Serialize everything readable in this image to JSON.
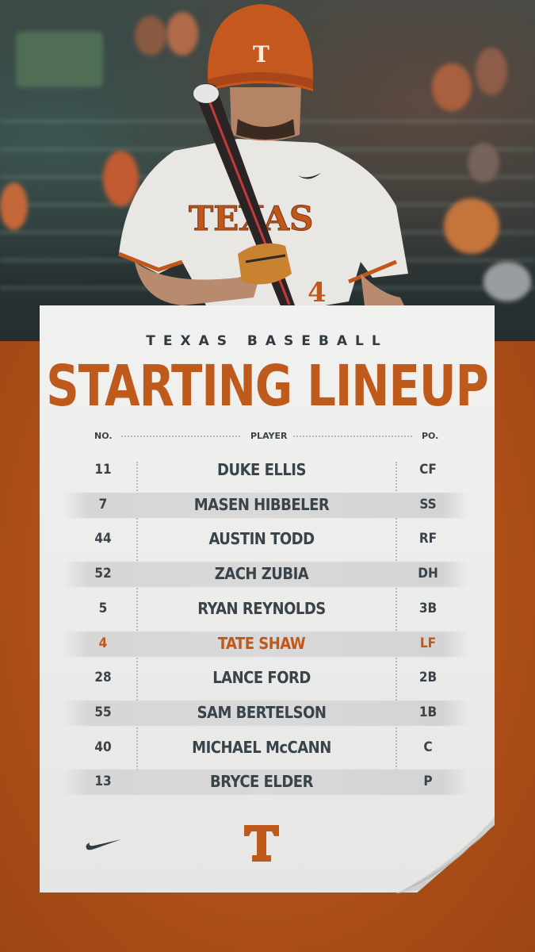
{
  "header": {
    "kicker": "TEXAS BASEBALL",
    "title": "STARTING LINEUP"
  },
  "columns": {
    "number": "NO.",
    "player": "PLAYER",
    "position": "PO."
  },
  "jersey": {
    "team_text": "TEXAS",
    "number": "4"
  },
  "helmet_letter": "T",
  "lineup": [
    {
      "number": "11",
      "name": "DUKE ELLIS",
      "pos": "CF",
      "highlight": false
    },
    {
      "number": "7",
      "name": "MASEN HIBBELER",
      "pos": "SS",
      "highlight": false
    },
    {
      "number": "44",
      "name": "AUSTIN TODD",
      "pos": "RF",
      "highlight": false
    },
    {
      "number": "52",
      "name": "ZACH ZUBIA",
      "pos": "DH",
      "highlight": false
    },
    {
      "number": "5",
      "name": "RYAN REYNOLDS",
      "pos": "3B",
      "highlight": false
    },
    {
      "number": "4",
      "name": "TATE SHAW",
      "pos": "LF",
      "highlight": true
    },
    {
      "number": "28",
      "name": "LANCE FORD",
      "pos": "2B",
      "highlight": false
    },
    {
      "number": "55",
      "name": "SAM BERTELSON",
      "pos": "1B",
      "highlight": false
    },
    {
      "number": "40",
      "name": "MICHAEL McCANN",
      "pos": "C",
      "highlight": false
    },
    {
      "number": "13",
      "name": "BRYCE ELDER",
      "pos": "P",
      "highlight": false
    }
  ],
  "footer": {
    "brand_icon": "nike-swoosh-icon",
    "team_logo_letter": "T"
  },
  "colors": {
    "burnt_orange": "#bf5a1d",
    "text_dark": "#39434a",
    "background_orange": "#b7541f"
  }
}
